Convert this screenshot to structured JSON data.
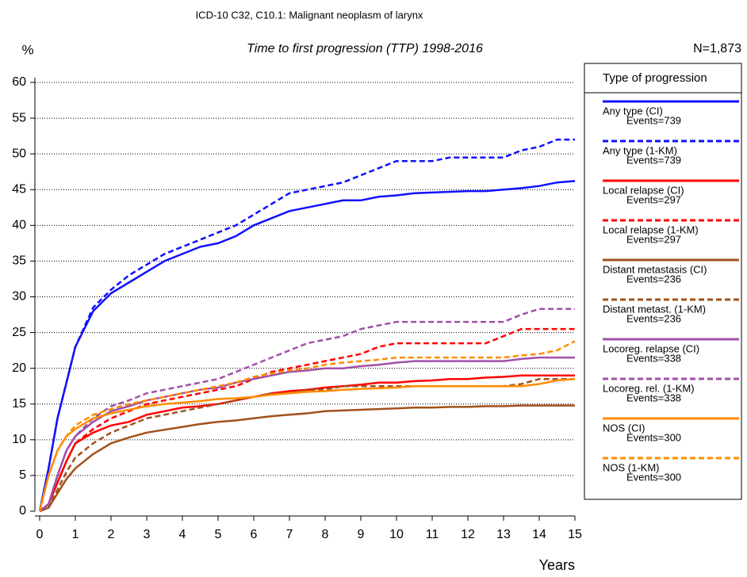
{
  "chart_data": {
    "type": "line",
    "title": "ICD-10 C32, C10.1: Malignant neoplasm of larynx",
    "subtitle": "Time to first progression (TTP) 1998-2016",
    "y_label": "%",
    "x_label": "Years",
    "annotation": "N=1,873",
    "legend_title": "Type of progression",
    "grid": true,
    "xlim": [
      0,
      15
    ],
    "xticks": [
      0,
      1,
      2,
      3,
      4,
      5,
      6,
      7,
      8,
      9,
      10,
      11,
      12,
      13,
      14,
      15
    ],
    "ylim": [
      0,
      60
    ],
    "yticks": [
      0,
      5,
      10,
      15,
      20,
      25,
      30,
      35,
      40,
      45,
      50,
      55,
      60
    ],
    "x": [
      0,
      0.25,
      0.5,
      0.75,
      1,
      1.5,
      2,
      2.5,
      3,
      3.5,
      4,
      4.5,
      5,
      5.5,
      6,
      6.5,
      7,
      7.5,
      8,
      8.5,
      9,
      9.5,
      10,
      10.5,
      11,
      11.5,
      12,
      12.5,
      13,
      13.5,
      14,
      14.5,
      15
    ],
    "series": [
      {
        "name": "Any type (CI)",
        "events": "Events=739",
        "color": "#1010ff",
        "dashed": false,
        "values": [
          0,
          6,
          13,
          18,
          23,
          28,
          30.5,
          32,
          33.5,
          35,
          36,
          37,
          37.5,
          38.5,
          40,
          41,
          42,
          42.5,
          43,
          43.5,
          43.5,
          44,
          44.2,
          44.5,
          44.6,
          44.7,
          44.8,
          44.8,
          45,
          45.2,
          45.5,
          46,
          46.2
        ]
      },
      {
        "name": "Any type (1-KM)",
        "events": "Events=739",
        "color": "#1010ff",
        "dashed": true,
        "values": [
          0,
          6,
          13,
          18,
          23,
          28.5,
          31,
          33,
          34.5,
          36,
          37,
          38,
          39,
          40,
          41.5,
          43,
          44.5,
          45,
          45.5,
          46,
          47,
          48,
          49,
          49,
          49,
          49.5,
          49.5,
          49.5,
          49.5,
          50.5,
          51,
          52,
          52
        ]
      },
      {
        "name": "Local relapse (CI)",
        "events": "Events=297",
        "color": "#ff0000",
        "dashed": false,
        "values": [
          0,
          1,
          4,
          7,
          9.5,
          11,
          12,
          12.5,
          13.5,
          14,
          14.5,
          14.7,
          15,
          15.5,
          16,
          16.5,
          16.8,
          17,
          17.3,
          17.5,
          17.7,
          18,
          18,
          18.2,
          18.3,
          18.5,
          18.5,
          18.7,
          18.8,
          19,
          19,
          19,
          19
        ]
      },
      {
        "name": "Local relapse (1-KM)",
        "events": "Events=297",
        "color": "#ff0000",
        "dashed": true,
        "values": [
          0,
          1,
          4,
          7,
          9.5,
          11.5,
          13,
          14,
          15,
          15.5,
          16,
          16.5,
          17,
          17.5,
          18.5,
          19.5,
          20,
          20.5,
          21,
          21.5,
          22,
          23,
          23.5,
          23.5,
          23.5,
          23.5,
          23.5,
          23.5,
          24.5,
          25.5,
          25.5,
          25.5,
          25.5
        ]
      },
      {
        "name": "Distant metastasis (CI)",
        "events": "Events=236",
        "color": "#a0521a",
        "dashed": false,
        "values": [
          0,
          0.5,
          2.5,
          4.5,
          6,
          8,
          9.5,
          10.3,
          11,
          11.4,
          11.8,
          12.2,
          12.5,
          12.7,
          13,
          13.3,
          13.5,
          13.7,
          14,
          14.1,
          14.2,
          14.3,
          14.4,
          14.5,
          14.5,
          14.6,
          14.6,
          14.7,
          14.7,
          14.8,
          14.8,
          14.8,
          14.8
        ]
      },
      {
        "name": "Distant metast. (1-KM)",
        "events": "Events=236",
        "color": "#a0521a",
        "dashed": true,
        "values": [
          0,
          0.5,
          3,
          5.5,
          7.5,
          9.5,
          11,
          12,
          13,
          13.5,
          14,
          14.5,
          15,
          15.5,
          16,
          16.5,
          16.5,
          17,
          17,
          17.5,
          17.5,
          17.5,
          17.5,
          17.5,
          17.5,
          17.5,
          17.5,
          17.5,
          17.5,
          17.8,
          18.5,
          18.5,
          18.5
        ]
      },
      {
        "name": "Locoreg. relapse (CI)",
        "events": "Events=338",
        "color": "#a050a8",
        "dashed": false,
        "values": [
          0,
          1,
          5,
          8.5,
          10.5,
          12.5,
          14,
          14.7,
          15.5,
          16,
          16.5,
          17,
          17.3,
          18,
          18.5,
          19,
          19.5,
          19.7,
          20,
          20,
          20.3,
          20.5,
          20.8,
          21,
          21,
          21,
          21,
          21,
          21,
          21.3,
          21.5,
          21.5,
          21.5
        ]
      },
      {
        "name": "Locoreg. rel. (1-KM)",
        "events": "Events=338",
        "color": "#a050a8",
        "dashed": true,
        "values": [
          0,
          1,
          5,
          8.5,
          10.5,
          13,
          14.7,
          15.5,
          16.5,
          17,
          17.5,
          18,
          18.5,
          19.5,
          20.5,
          21.5,
          22.5,
          23.5,
          24,
          24.5,
          25.5,
          26,
          26.5,
          26.5,
          26.5,
          26.5,
          26.5,
          26.5,
          26.5,
          27.5,
          28.3,
          28.3,
          28.3
        ]
      },
      {
        "name": "NOS (CI)",
        "events": "Events=300",
        "color": "#ff8c00",
        "dashed": false,
        "values": [
          0,
          5,
          8.5,
          10.5,
          11.5,
          13,
          13.7,
          14.2,
          14.7,
          15,
          15.2,
          15.4,
          15.7,
          15.8,
          16,
          16.3,
          16.5,
          16.7,
          16.8,
          17,
          17.1,
          17.2,
          17.3,
          17.5,
          17.5,
          17.5,
          17.5,
          17.5,
          17.5,
          17.5,
          17.8,
          18.3,
          18.5
        ]
      },
      {
        "name": "NOS (1-KM)",
        "events": "Events=300",
        "color": "#ff8c00",
        "dashed": true,
        "values": [
          0,
          5,
          8.5,
          10.5,
          12,
          13.5,
          14.3,
          15,
          15.5,
          16,
          16.5,
          17,
          17.5,
          18,
          18.8,
          19.3,
          19.7,
          20,
          20.5,
          20.8,
          21,
          21.2,
          21.5,
          21.5,
          21.5,
          21.5,
          21.5,
          21.5,
          21.5,
          21.8,
          22,
          22.5,
          23.8
        ]
      }
    ]
  }
}
